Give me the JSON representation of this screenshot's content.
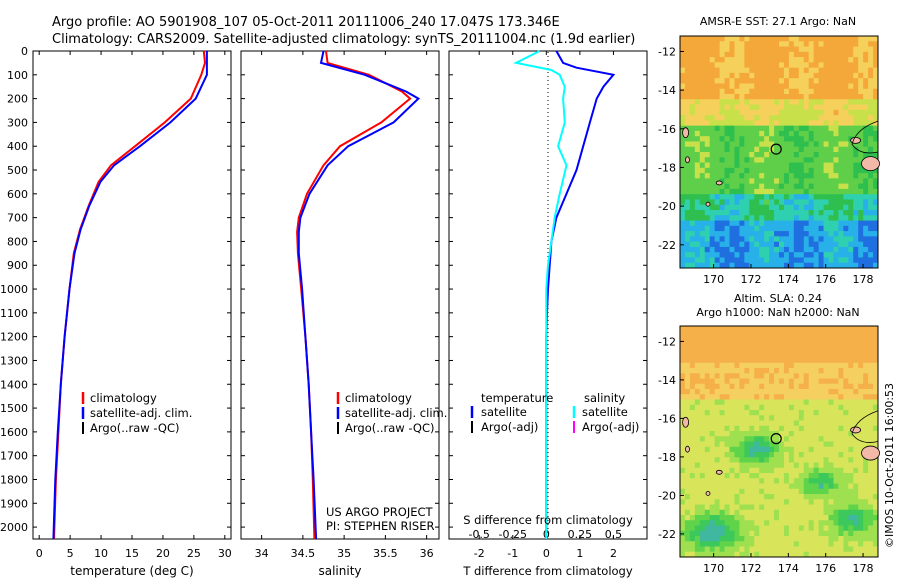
{
  "header": {
    "line1": "Argo profile: AO 5901908_107 05-Oct-2011 20111006_240 17.047S 173.346E",
    "line2": "Climatology: CARS2009. Satellite-adjusted climatology: synTS_20111004.nc (1.9d earlier)"
  },
  "colors": {
    "climatology": "#ff0000",
    "satellite": "#0000ff",
    "argo": "#000000",
    "salinity_satellite": "#00ffff",
    "salinity_argo": "#ff00ff"
  },
  "chart_data": [
    {
      "type": "line",
      "id": "temperature",
      "xlabel": "temperature (deg C)",
      "ylabel": "",
      "xlim": [
        -1,
        31
      ],
      "ylim": [
        2050,
        0
      ],
      "x_ticks": [
        0,
        5,
        10,
        15,
        20,
        25,
        30
      ],
      "y_ticks": [
        0,
        100,
        200,
        300,
        400,
        500,
        600,
        700,
        800,
        900,
        1000,
        1100,
        1200,
        1300,
        1400,
        1500,
        1600,
        1700,
        1800,
        1900,
        2000
      ],
      "legend": [
        "climatology",
        "satellite-adj. clim.",
        "Argo(..raw -QC)"
      ],
      "series": [
        {
          "name": "climatology",
          "points": [
            [
              26.6,
              0
            ],
            [
              26.8,
              50
            ],
            [
              26.2,
              100
            ],
            [
              24.5,
              200
            ],
            [
              20.3,
              300
            ],
            [
              15.5,
              400
            ],
            [
              11.6,
              480
            ],
            [
              9.6,
              550
            ],
            [
              8.0,
              650
            ],
            [
              6.6,
              750
            ],
            [
              5.6,
              850
            ],
            [
              4.9,
              1000
            ],
            [
              4.1,
              1200
            ],
            [
              3.5,
              1400
            ],
            [
              3.1,
              1600
            ],
            [
              2.7,
              1800
            ],
            [
              2.4,
              2050
            ]
          ]
        },
        {
          "name": "satellite-adj. clim.",
          "points": [
            [
              27.1,
              0
            ],
            [
              27.1,
              50
            ],
            [
              27.1,
              100
            ],
            [
              25.3,
              200
            ],
            [
              21.2,
              300
            ],
            [
              16.3,
              400
            ],
            [
              12.1,
              480
            ],
            [
              9.9,
              550
            ],
            [
              8.1,
              650
            ],
            [
              6.7,
              750
            ],
            [
              5.7,
              850
            ],
            [
              4.9,
              1000
            ],
            [
              4.1,
              1200
            ],
            [
              3.5,
              1400
            ],
            [
              3.0,
              1600
            ],
            [
              2.6,
              1800
            ],
            [
              2.3,
              2050
            ]
          ]
        }
      ]
    },
    {
      "type": "line",
      "id": "salinity",
      "xlabel": "salinity",
      "xlim": [
        33.75,
        36.15
      ],
      "ylim": [
        2050,
        0
      ],
      "x_ticks": [
        34,
        34.5,
        35,
        35.5,
        36
      ],
      "legend": [
        "climatology",
        "satellite-adj. clim.",
        "Argo(..raw -QC)"
      ],
      "series": [
        {
          "name": "climatology",
          "points": [
            [
              34.78,
              0
            ],
            [
              34.8,
              50
            ],
            [
              35.3,
              100
            ],
            [
              35.7,
              170
            ],
            [
              35.8,
              200
            ],
            [
              35.45,
              300
            ],
            [
              34.95,
              400
            ],
            [
              34.75,
              480
            ],
            [
              34.55,
              600
            ],
            [
              34.45,
              700
            ],
            [
              34.43,
              760
            ],
            [
              34.44,
              850
            ],
            [
              34.48,
              1000
            ],
            [
              34.53,
              1200
            ],
            [
              34.57,
              1400
            ],
            [
              34.6,
              1600
            ],
            [
              34.62,
              1800
            ],
            [
              34.64,
              2050
            ]
          ]
        },
        {
          "name": "satellite-adj. clim.",
          "points": [
            [
              34.75,
              0
            ],
            [
              34.72,
              50
            ],
            [
              35.25,
              100
            ],
            [
              35.75,
              170
            ],
            [
              35.9,
              200
            ],
            [
              35.6,
              300
            ],
            [
              35.05,
              400
            ],
            [
              34.8,
              480
            ],
            [
              34.58,
              600
            ],
            [
              34.47,
              700
            ],
            [
              34.45,
              760
            ],
            [
              34.45,
              850
            ],
            [
              34.49,
              1000
            ],
            [
              34.53,
              1200
            ],
            [
              34.57,
              1400
            ],
            [
              34.6,
              1600
            ],
            [
              34.63,
              1800
            ],
            [
              34.66,
              2050
            ]
          ]
        }
      ],
      "annotation": [
        "US ARGO PROJECT",
        "PI: STEPHEN RISER"
      ]
    },
    {
      "type": "line",
      "id": "difference",
      "xlim": [
        -2.9,
        3.0
      ],
      "ylim": [
        2050,
        0
      ],
      "x_ticks_bottom": [
        -2,
        -1,
        0,
        1,
        2
      ],
      "x_ticks_top": [
        -0.5,
        -0.25,
        0,
        0.25,
        0.5
      ],
      "xlabel_top": "S difference from climatology",
      "xlabel_bottom": "T difference from climatology",
      "legend": {
        "temperature_heading": "temperature",
        "temperature_items": [
          "satellite",
          "Argo(-adj)"
        ],
        "salinity_heading": "salinity",
        "salinity_items": [
          "satellite",
          "Argo(-adj)"
        ]
      },
      "series": [
        {
          "name": "satellite",
          "variable": "temperature",
          "points": [
            [
              0.3,
              0
            ],
            [
              0.5,
              50
            ],
            [
              0.9,
              70
            ],
            [
              2.0,
              100
            ],
            [
              1.7,
              150
            ],
            [
              1.5,
              200
            ],
            [
              1.3,
              300
            ],
            [
              1.1,
              400
            ],
            [
              0.9,
              500
            ],
            [
              0.6,
              600
            ],
            [
              0.3,
              700
            ],
            [
              0.15,
              800
            ],
            [
              0.1,
              900
            ],
            [
              0.05,
              1000
            ],
            [
              0.02,
              1100
            ],
            [
              0,
              1200
            ],
            [
              0,
              1400
            ],
            [
              0,
              1600
            ],
            [
              0,
              1800
            ],
            [
              0,
              2050
            ]
          ]
        },
        {
          "name": "satellite",
          "variable": "salinity",
          "points": [
            [
              -0.2,
              0
            ],
            [
              -0.9,
              50
            ],
            [
              0.15,
              80
            ],
            [
              0.4,
              100
            ],
            [
              0.55,
              150
            ],
            [
              0.5,
              200
            ],
            [
              0.55,
              300
            ],
            [
              0.35,
              400
            ],
            [
              0.6,
              480
            ],
            [
              0.4,
              600
            ],
            [
              0.25,
              700
            ],
            [
              0.15,
              800
            ],
            [
              0.05,
              900
            ],
            [
              0,
              1000
            ],
            [
              0,
              1100
            ],
            [
              0,
              1200
            ],
            [
              0,
              1400
            ],
            [
              0,
              1600
            ],
            [
              0,
              1800
            ],
            [
              0,
              2050
            ]
          ]
        }
      ]
    },
    {
      "type": "heatmap",
      "id": "sst_map",
      "title": "AMSR-E SST: 27.1  Argo: NaN",
      "xlim": [
        168.2,
        178.8
      ],
      "ylim": [
        -23.2,
        -11.2
      ],
      "x_ticks": [
        170,
        172,
        174,
        176,
        178
      ],
      "y_ticks": [
        -12,
        -14,
        -16,
        -18,
        -20,
        -22
      ],
      "marker": [
        173.35,
        -17.05
      ]
    },
    {
      "type": "heatmap",
      "id": "sla_map",
      "title_line1": "Altim. SLA: 0.24",
      "title_line2": "Argo h1000: NaN h2000: NaN",
      "xlim": [
        168.2,
        178.8
      ],
      "ylim": [
        -23.2,
        -11.2
      ],
      "x_ticks": [
        170,
        172,
        174,
        176,
        178
      ],
      "y_ticks": [
        -12,
        -14,
        -16,
        -18,
        -20,
        -22
      ],
      "marker": [
        173.35,
        -17.05
      ]
    }
  ],
  "footer": {
    "timestamp": "©IMOS 10-Oct-2011 16:00:53"
  }
}
